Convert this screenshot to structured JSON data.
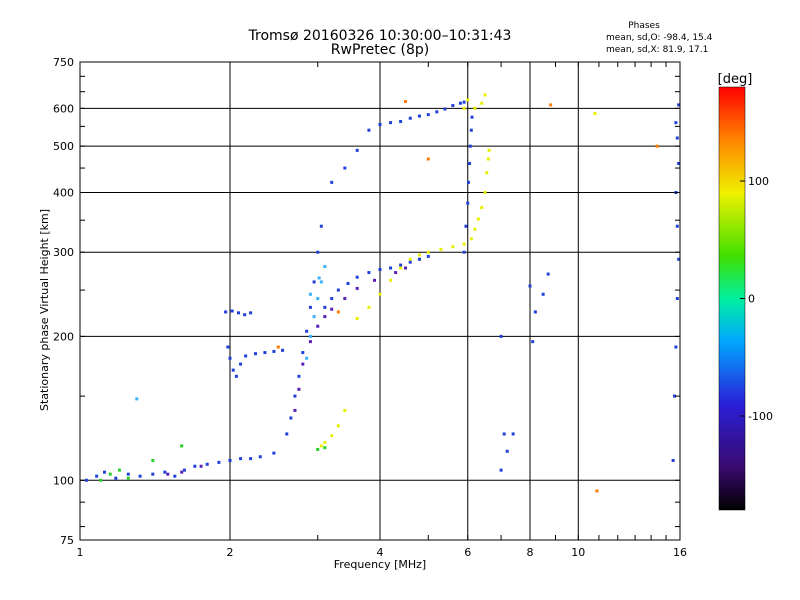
{
  "chart_data": {
    "type": "scatter",
    "title": "Tromsø 20160326 10:30:00–10:31:43",
    "subtitle": "RwPretec (8p)",
    "info": {
      "heading": "Phases",
      "line1": "mean, sd,O: -98.4, 15.4",
      "line2": "mean, sd,X:  81.9, 17.1"
    },
    "xlabel": "Frequency [MHz]",
    "ylabel": "Stationary phase Virtual Height [km]",
    "xscale": "log",
    "yscale": "log",
    "xlim": [
      1,
      16
    ],
    "ylim": [
      75,
      750
    ],
    "xticks": [
      1,
      2,
      4,
      6,
      8,
      10,
      16
    ],
    "xticklabels": [
      "1",
      "2",
      "4",
      "6",
      "8",
      "10",
      "16"
    ],
    "yticks": [
      75,
      100,
      200,
      300,
      400,
      500,
      600,
      750
    ],
    "yticklabels": [
      "75",
      "100",
      "200",
      "300",
      "400",
      "500",
      "600",
      "750"
    ],
    "grid": true,
    "colorbar": {
      "label": "[deg]",
      "range": [
        -180,
        180
      ],
      "ticks": [
        100,
        0,
        -100
      ],
      "ticklabels": [
        "100",
        "0",
        "-100"
      ],
      "colormap": "rainbow (black-purple-blue-cyan-green-yellow-red)"
    },
    "series": [
      {
        "color": "#1f3fd8",
        "points": [
          [
            1.03,
            100
          ],
          [
            1.08,
            102
          ],
          [
            1.12,
            104
          ],
          [
            1.18,
            101
          ],
          [
            1.25,
            103
          ],
          [
            1.32,
            102
          ],
          [
            1.4,
            103
          ],
          [
            1.48,
            104
          ],
          [
            1.55,
            102
          ],
          [
            1.62,
            105
          ],
          [
            1.7,
            107
          ],
          [
            1.8,
            108
          ],
          [
            1.9,
            109
          ],
          [
            2.0,
            110
          ],
          [
            2.1,
            111
          ],
          [
            2.2,
            111
          ],
          [
            2.3,
            112
          ],
          [
            2.45,
            114
          ],
          [
            1.96,
            225
          ],
          [
            2.02,
            226
          ],
          [
            2.08,
            224
          ],
          [
            2.14,
            222
          ],
          [
            2.2,
            224
          ],
          [
            1.98,
            190
          ],
          [
            2.0,
            180
          ],
          [
            2.03,
            170
          ],
          [
            2.06,
            165
          ],
          [
            2.1,
            175
          ],
          [
            2.15,
            182
          ],
          [
            2.25,
            184
          ],
          [
            2.35,
            185
          ],
          [
            2.45,
            186
          ],
          [
            2.55,
            187
          ],
          [
            2.6,
            125
          ],
          [
            2.65,
            135
          ],
          [
            2.7,
            150
          ],
          [
            2.75,
            165
          ],
          [
            2.8,
            185
          ],
          [
            2.85,
            205
          ],
          [
            2.9,
            230
          ],
          [
            2.95,
            260
          ],
          [
            3.0,
            300
          ],
          [
            3.05,
            340
          ],
          [
            3.1,
            230
          ],
          [
            3.2,
            240
          ],
          [
            3.3,
            250
          ],
          [
            3.45,
            258
          ],
          [
            3.6,
            266
          ],
          [
            3.8,
            272
          ],
          [
            4.0,
            276
          ],
          [
            4.2,
            278
          ],
          [
            4.4,
            282
          ],
          [
            4.6,
            286
          ],
          [
            4.8,
            290
          ],
          [
            5.0,
            294
          ],
          [
            3.2,
            420
          ],
          [
            3.4,
            450
          ],
          [
            3.6,
            490
          ],
          [
            3.8,
            540
          ],
          [
            4.0,
            555
          ],
          [
            4.2,
            560
          ],
          [
            4.4,
            563
          ],
          [
            4.6,
            572
          ],
          [
            4.8,
            578
          ],
          [
            5.0,
            582
          ],
          [
            5.2,
            590
          ],
          [
            5.4,
            598
          ],
          [
            5.6,
            608
          ],
          [
            5.8,
            615
          ],
          [
            5.9,
            618
          ],
          [
            5.9,
            300
          ],
          [
            5.95,
            340
          ],
          [
            6.0,
            380
          ],
          [
            6.02,
            420
          ],
          [
            6.05,
            460
          ],
          [
            6.07,
            500
          ],
          [
            6.1,
            540
          ],
          [
            6.12,
            575
          ],
          [
            7.0,
            105
          ],
          [
            7.2,
            115
          ],
          [
            7.4,
            125
          ],
          [
            7.1,
            125
          ],
          [
            7.0,
            200
          ],
          [
            8.1,
            195
          ],
          [
            8.2,
            225
          ],
          [
            8.0,
            255
          ],
          [
            8.5,
            245
          ],
          [
            8.7,
            270
          ],
          [
            15.5,
            110
          ],
          [
            15.6,
            150
          ],
          [
            15.7,
            190
          ],
          [
            15.8,
            240
          ],
          [
            15.9,
            290
          ],
          [
            15.8,
            340
          ],
          [
            15.7,
            400
          ],
          [
            15.9,
            460
          ],
          [
            15.8,
            520
          ],
          [
            15.7,
            560
          ],
          [
            15.9,
            610
          ]
        ]
      },
      {
        "color": "#5a1fb8",
        "points": [
          [
            1.5,
            103
          ],
          [
            1.6,
            104
          ],
          [
            1.75,
            107
          ],
          [
            2.7,
            140
          ],
          [
            2.75,
            155
          ],
          [
            2.8,
            175
          ],
          [
            2.9,
            195
          ],
          [
            3.0,
            210
          ],
          [
            3.1,
            220
          ],
          [
            3.2,
            228
          ],
          [
            3.4,
            240
          ],
          [
            3.6,
            252
          ],
          [
            3.9,
            262
          ],
          [
            4.3,
            272
          ],
          [
            4.5,
            278
          ]
        ]
      },
      {
        "color": "#3bb0ff",
        "points": [
          [
            2.85,
            180
          ],
          [
            2.9,
            200
          ],
          [
            2.95,
            220
          ],
          [
            3.0,
            240
          ],
          [
            3.05,
            260
          ],
          [
            3.1,
            280
          ],
          [
            2.9,
            245
          ],
          [
            3.02,
            265
          ],
          [
            1.3,
            148
          ]
        ]
      },
      {
        "color": "#e8f000",
        "points": [
          [
            3.05,
            118
          ],
          [
            3.1,
            120
          ],
          [
            3.2,
            124
          ],
          [
            3.3,
            130
          ],
          [
            3.4,
            140
          ],
          [
            3.6,
            218
          ],
          [
            3.8,
            230
          ],
          [
            4.0,
            245
          ],
          [
            4.2,
            262
          ],
          [
            4.4,
            278
          ],
          [
            4.6,
            290
          ],
          [
            4.8,
            296
          ],
          [
            5.0,
            300
          ],
          [
            5.3,
            304
          ],
          [
            5.6,
            308
          ],
          [
            5.9,
            312
          ],
          [
            6.1,
            320
          ],
          [
            6.2,
            335
          ],
          [
            6.3,
            352
          ],
          [
            6.4,
            372
          ],
          [
            6.5,
            400
          ],
          [
            6.55,
            440
          ],
          [
            6.6,
            470
          ],
          [
            6.62,
            490
          ],
          [
            5.9,
            600
          ],
          [
            6.0,
            625
          ],
          [
            6.2,
            600
          ],
          [
            6.4,
            615
          ],
          [
            6.5,
            640
          ],
          [
            10.8,
            585
          ]
        ]
      },
      {
        "color": "#28d22a",
        "points": [
          [
            1.1,
            100
          ],
          [
            1.15,
            103
          ],
          [
            1.2,
            105
          ],
          [
            1.25,
            101
          ],
          [
            1.4,
            110
          ],
          [
            1.6,
            118
          ],
          [
            3.0,
            116
          ],
          [
            3.1,
            117
          ]
        ]
      },
      {
        "color": "#ff7a00",
        "points": [
          [
            2.5,
            190
          ],
          [
            3.3,
            225
          ],
          [
            4.5,
            620
          ],
          [
            8.8,
            610
          ],
          [
            10.9,
            95
          ],
          [
            14.4,
            500
          ],
          [
            5.0,
            470
          ]
        ]
      }
    ]
  }
}
